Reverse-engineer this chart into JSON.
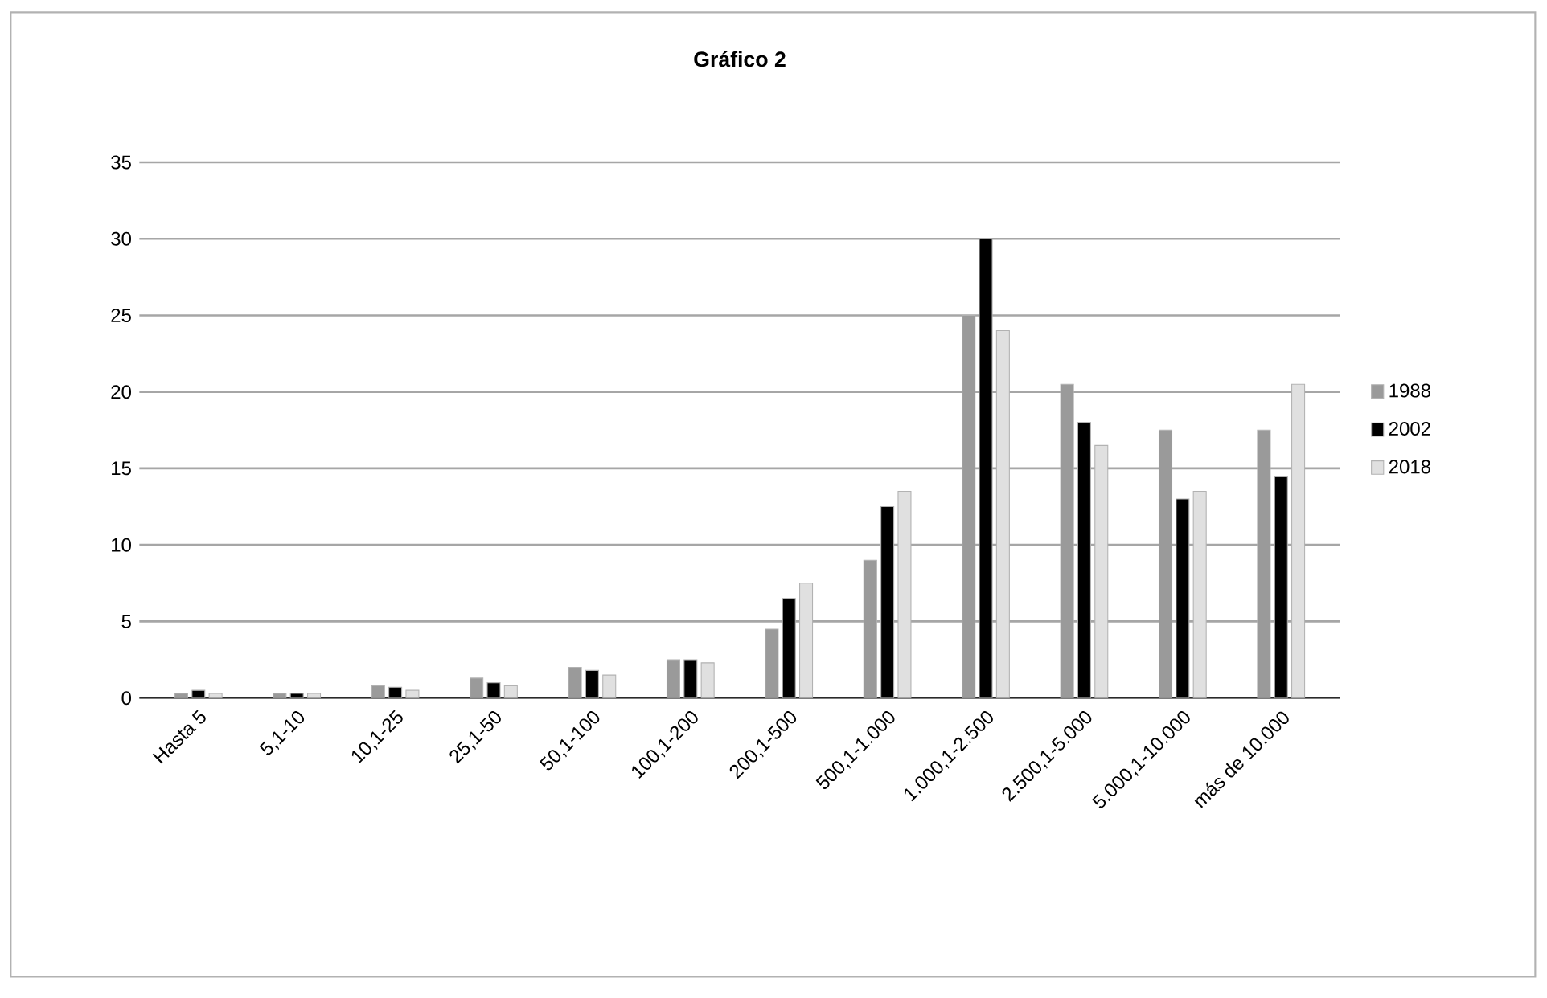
{
  "chart_data": {
    "type": "bar",
    "title": "Gráfico 2",
    "categories": [
      "Hasta 5",
      "5,1-10",
      "10,1-25",
      "25,1-50",
      "50,1-100",
      "100,1-200",
      "200,1-500",
      "500,1-1.000",
      "1.000,1-2.500",
      "2.500,1-5.000",
      "5.000,1-10.000",
      "más de 10.000"
    ],
    "series": [
      {
        "name": "1988",
        "color": "#9a9a9a",
        "values": [
          0.3,
          0.3,
          0.8,
          1.3,
          2,
          2.5,
          4.5,
          9,
          25,
          20.5,
          17.5,
          17.5
        ]
      },
      {
        "name": "2002",
        "color": "#000000",
        "values": [
          0.5,
          0.3,
          0.7,
          1,
          1.8,
          2.5,
          6.5,
          12.5,
          30,
          18,
          13,
          14.5
        ]
      },
      {
        "name": "2018",
        "color": "#e0e0e0",
        "values": [
          0.3,
          0.3,
          0.5,
          0.8,
          1.5,
          2.3,
          7.5,
          13.5,
          24,
          16.5,
          13.5,
          20.5
        ]
      }
    ],
    "ylim": [
      0,
      35
    ],
    "yticks": [
      0,
      5,
      10,
      15,
      20,
      25,
      30,
      35
    ],
    "grid": "y",
    "legend": "right"
  }
}
